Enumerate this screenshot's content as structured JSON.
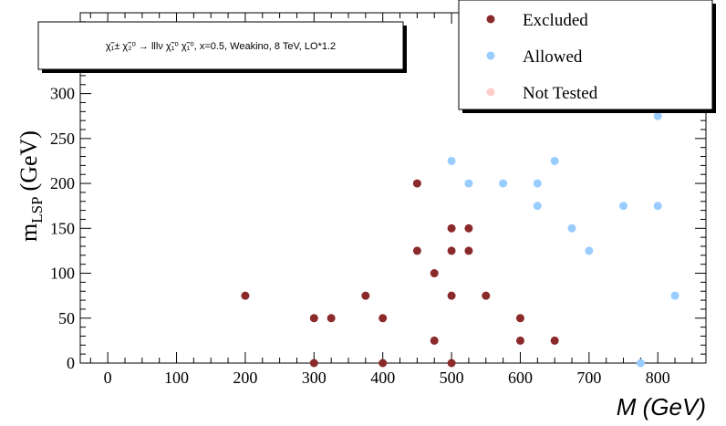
{
  "chart_data": {
    "type": "scatter",
    "xlabel": "M (GeV)",
    "ylabel_main": "m",
    "ylabel_sub": "LSP",
    "ylabel_unit": "(GeV)",
    "xlim": [
      -40,
      870
    ],
    "ylim": [
      0,
      390
    ],
    "x_ticks": [
      0,
      100,
      200,
      300,
      400,
      500,
      600,
      700,
      800
    ],
    "y_ticks": [
      0,
      50,
      100,
      150,
      200,
      250,
      300
    ],
    "info_label": "χ̃₁± χ̃₂⁰ → lllν χ̃₁⁰ χ̃₁⁰, x=0.5, Weakino, 8 TeV, LO*1.2",
    "legend_position": "top-right",
    "series": [
      {
        "name": "Excluded",
        "color": "#8b2a2a",
        "points": [
          [
            200,
            75
          ],
          [
            300,
            50
          ],
          [
            300,
            0
          ],
          [
            325,
            50
          ],
          [
            375,
            75
          ],
          [
            400,
            50
          ],
          [
            400,
            0
          ],
          [
            450,
            200
          ],
          [
            450,
            125
          ],
          [
            475,
            100
          ],
          [
            475,
            25
          ],
          [
            500,
            150
          ],
          [
            500,
            125
          ],
          [
            500,
            75
          ],
          [
            500,
            0
          ],
          [
            525,
            150
          ],
          [
            525,
            125
          ],
          [
            550,
            75
          ],
          [
            600,
            50
          ],
          [
            600,
            25
          ],
          [
            650,
            25
          ]
        ]
      },
      {
        "name": "Allowed",
        "color": "#99ccff",
        "points": [
          [
            500,
            225
          ],
          [
            525,
            200
          ],
          [
            575,
            200
          ],
          [
            625,
            200
          ],
          [
            625,
            175
          ],
          [
            650,
            225
          ],
          [
            675,
            150
          ],
          [
            700,
            125
          ],
          [
            750,
            175
          ],
          [
            775,
            0
          ],
          [
            800,
            275
          ],
          [
            800,
            175
          ],
          [
            825,
            75
          ]
        ]
      },
      {
        "name": "Not Tested",
        "color": "#ffcccc",
        "points": []
      }
    ]
  }
}
